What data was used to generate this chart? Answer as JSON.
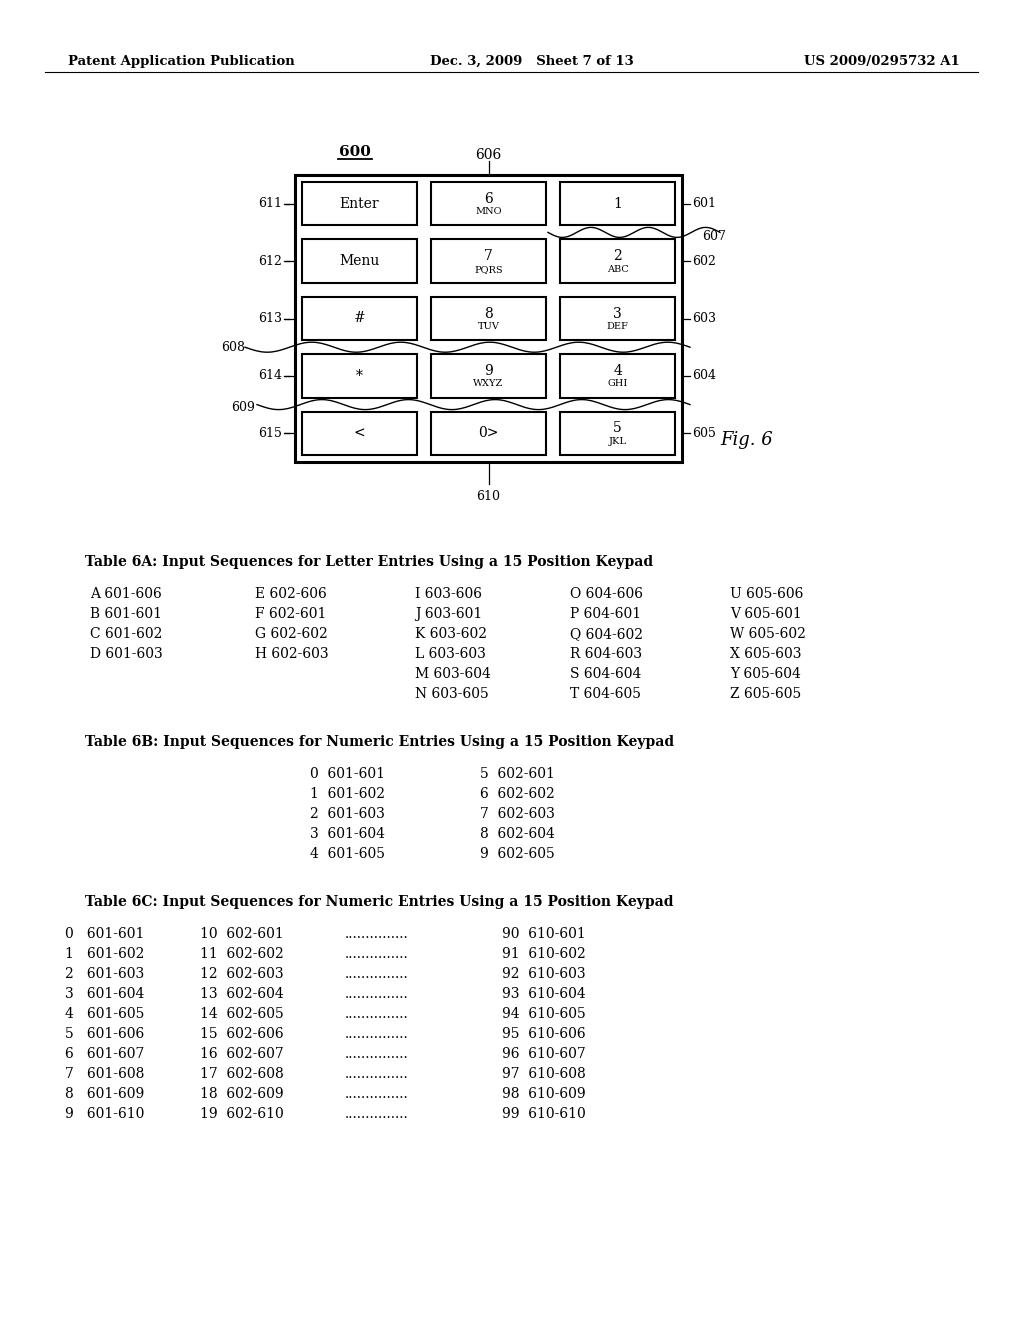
{
  "header_left": "Patent Application Publication",
  "header_mid": "Dec. 3, 2009   Sheet 7 of 13",
  "header_right": "US 2009/0295732 A1",
  "fig_label": "Fig. 6",
  "diagram_label": "600",
  "keypad_rows": [
    {
      "row_label": "611",
      "keys": [
        {
          "label": "Enter",
          "sub": ""
        },
        {
          "label": "6",
          "sub": "MNO"
        },
        {
          "label": "1",
          "sub": ""
        }
      ]
    },
    {
      "row_label": "612",
      "keys": [
        {
          "label": "Menu",
          "sub": ""
        },
        {
          "label": "7",
          "sub": "PQRS"
        },
        {
          "label": "2",
          "sub": "ABC"
        }
      ]
    },
    {
      "row_label": "613",
      "keys": [
        {
          "label": "#",
          "sub": ""
        },
        {
          "label": "8",
          "sub": "TUV"
        },
        {
          "label": "3",
          "sub": "DEF"
        }
      ]
    },
    {
      "row_label": "614",
      "keys": [
        {
          "label": "*",
          "sub": ""
        },
        {
          "label": "9",
          "sub": "WXYZ"
        },
        {
          "label": "4",
          "sub": "GHI"
        }
      ]
    },
    {
      "row_label": "615",
      "keys": [
        {
          "label": "<",
          "sub": ""
        },
        {
          "label": "0>",
          "sub": ""
        },
        {
          "label": "5",
          "sub": "JKL"
        }
      ]
    }
  ],
  "table6A_title": "Table 6A: Input Sequences for Letter Entries Using a 15 Position Keypad",
  "table6A": [
    [
      "A 601-606",
      "E 602-606",
      "I 603-606",
      "O 604-606",
      "U 605-606"
    ],
    [
      "B 601-601",
      "F 602-601",
      "J 603-601",
      "P 604-601",
      "V 605-601"
    ],
    [
      "C 601-602",
      "G 602-602",
      "K 603-602",
      "Q 604-602",
      "W 605-602"
    ],
    [
      "D 601-603",
      "H 602-603",
      "L 603-603",
      "R 604-603",
      "X 605-603"
    ],
    [
      "",
      "",
      "M 603-604",
      "S 604-604",
      "Y 605-604"
    ],
    [
      "",
      "",
      "N 603-605",
      "T 604-605",
      "Z 605-605"
    ]
  ],
  "table6B_title": "Table 6B: Input Sequences for Numeric Entries Using a 15 Position Keypad",
  "table6B_col1": [
    "0  601-601",
    "1  601-602",
    "2  601-603",
    "3  601-604",
    "4  601-605"
  ],
  "table6B_col2": [
    "5  602-601",
    "6  602-602",
    "7  602-603",
    "8  602-604",
    "9  602-605"
  ],
  "table6C_title": "Table 6C: Input Sequences for Numeric Entries Using a 15 Position Keypad",
  "table6C_col1": [
    "0   601-601",
    "1   601-602",
    "2   601-603",
    "3   601-604",
    "4   601-605",
    "5   601-606",
    "6   601-607",
    "7   601-608",
    "8   601-609",
    "9   601-610"
  ],
  "table6C_col2": [
    "10  602-601",
    "11  602-602",
    "12  602-603",
    "13  602-604",
    "14  602-605",
    "15  602-606",
    "16  602-607",
    "17  602-608",
    "18  602-609",
    "19  602-610"
  ],
  "table6C_col2dots": [
    "...............",
    "...............",
    "...............",
    "...............",
    "...............",
    "...............",
    "...............",
    "...............",
    "...............",
    "..............."
  ],
  "table6C_col3": [
    "90  610-601",
    "91  610-602",
    "92  610-603",
    "93  610-604",
    "94  610-605",
    "95  610-606",
    "96  610-607",
    "97  610-608",
    "98  610-609",
    "99  610-610"
  ],
  "bg_color": "#ffffff",
  "text_color": "#000000"
}
